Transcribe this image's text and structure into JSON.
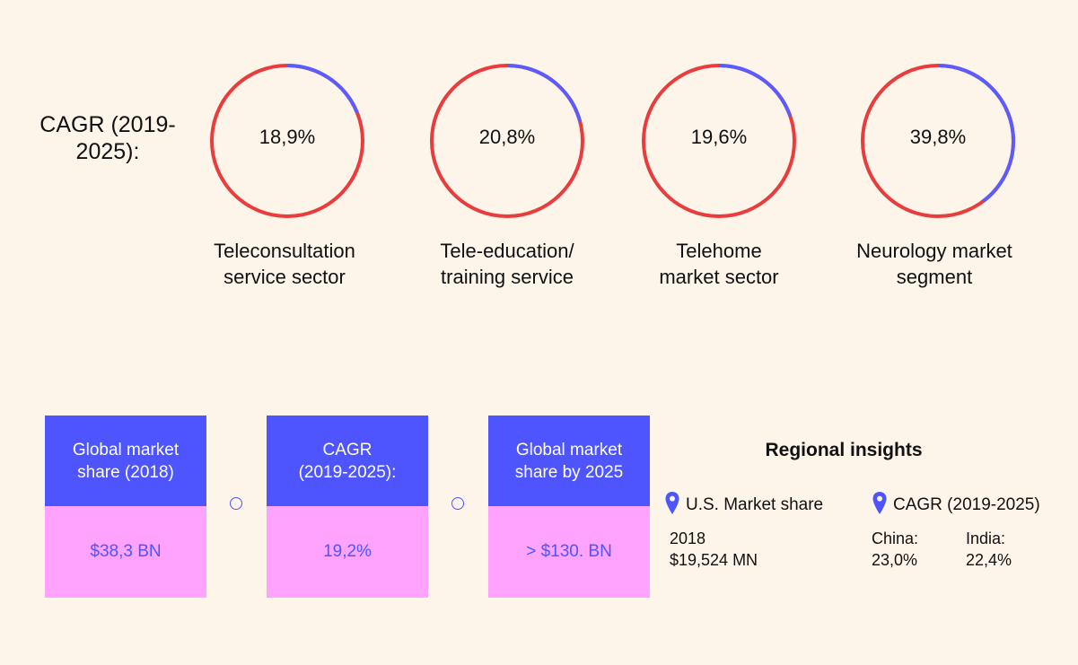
{
  "cagr_label": "CAGR (2019-2025):",
  "colors": {
    "track": "#e93d3d",
    "accent": "#5a5cff",
    "card_head": "#4e55ff",
    "card_body": "#ffa3ff"
  },
  "chart_data": {
    "type": "pie",
    "title": "CAGR (2019-2025):",
    "categories": [
      "Teleconsultation service sector",
      "Tele-education/ training service",
      "Telehome market sector",
      "Neurology market segment"
    ],
    "values": [
      18.9,
      20.8,
      19.6,
      39.8
    ],
    "labels": [
      "18,9%",
      "20,8%",
      "19,6%",
      "39,8%"
    ]
  },
  "gauges": [
    {
      "value_label": "18,9%",
      "caption_line1": "Teleconsultation",
      "caption_line2": "service sector"
    },
    {
      "value_label": "20,8%",
      "caption_line1": "Tele-education/",
      "caption_line2": "training service"
    },
    {
      "value_label": "19,6%",
      "caption_line1": "Telehome",
      "caption_line2": "market sector"
    },
    {
      "value_label": "39,8%",
      "caption_line1": "Neurology market",
      "caption_line2": "segment"
    }
  ],
  "cards": [
    {
      "head_line1": "Global market",
      "head_line2": "share (2018)",
      "value": "$38,3 BN"
    },
    {
      "head_line1": "CAGR",
      "head_line2": "(2019-2025):",
      "value": "19,2%"
    },
    {
      "head_line1": "Global market",
      "head_line2": "share by 2025",
      "value": "> $130. BN"
    }
  ],
  "regional": {
    "title": "Regional insights",
    "us_heading": "U.S. Market share",
    "us_year": "2018",
    "us_value": "$19,524 MN",
    "cagr_heading": "CAGR (2019-2025)",
    "china_label": "China:",
    "china_value": "23,0%",
    "india_label": "India:",
    "india_value": "22,4%",
    "pin_icon": "location-pin-icon"
  }
}
